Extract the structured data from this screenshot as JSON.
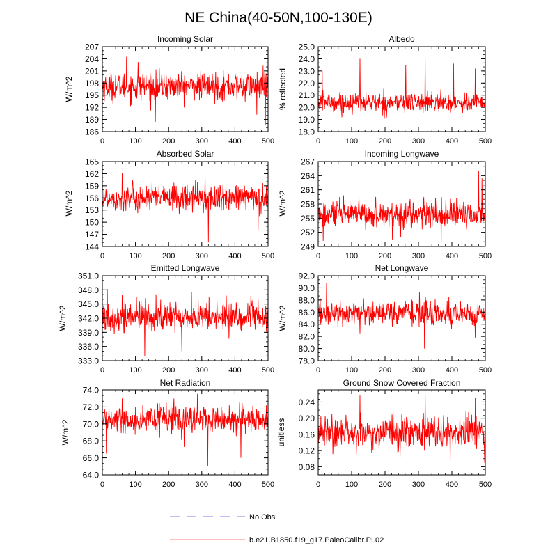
{
  "figure_title": "NE China(40-50N,100-130E)",
  "series_name": "b.e21.B1850.f19_g17.PaleoCalibr.PI.02",
  "series_color": "#ff0000",
  "legend": [
    {
      "label": "No Obs",
      "color": "#9999ee",
      "style": "dashed"
    },
    {
      "label": "b.e21.B1850.f19_g17.PaleoCalibr.PI.02",
      "color": "#ff0000",
      "style": "solid"
    }
  ],
  "chart_data": [
    {
      "type": "line",
      "title": "Incoming Solar",
      "ylabel": "W/m^2",
      "xlim": [
        0,
        500
      ],
      "ylim": [
        186,
        207
      ],
      "yticks": [
        "186",
        "189",
        "192",
        "195",
        "198",
        "201",
        "204",
        "207"
      ],
      "xticks": [
        "0",
        "100",
        "200",
        "300",
        "400",
        "500"
      ],
      "n": 500,
      "mean": 197.2,
      "amp": 1.9,
      "spikes": [
        [
          73,
          204.5
        ],
        [
          160,
          188.4
        ],
        [
          492,
          187.6
        ],
        [
          108,
          203.2
        ],
        [
          466,
          190.2
        ]
      ]
    },
    {
      "type": "line",
      "title": "Albedo",
      "ylabel": "% reflected",
      "xlim": [
        0,
        500
      ],
      "ylim": [
        18.0,
        25.0
      ],
      "yticks": [
        "18.0",
        "19.0",
        "20.0",
        "21.0",
        "22.0",
        "23.0",
        "24.0",
        "25.0"
      ],
      "xticks": [
        "0",
        "100",
        "200",
        "300",
        "400",
        "500"
      ],
      "n": 500,
      "mean": 20.4,
      "amp": 0.45,
      "spikes": [
        [
          125,
          24.0
        ],
        [
          320,
          24.0
        ],
        [
          262,
          23.5
        ],
        [
          12,
          23.0
        ],
        [
          405,
          23.6
        ],
        [
          470,
          23.2
        ]
      ]
    },
    {
      "type": "line",
      "title": "Absorbed Solar",
      "ylabel": "W/m^2",
      "xlim": [
        0,
        500
      ],
      "ylim": [
        144,
        165
      ],
      "yticks": [
        "144",
        "147",
        "150",
        "153",
        "156",
        "159",
        "162",
        "165"
      ],
      "xticks": [
        "0",
        "100",
        "200",
        "300",
        "400",
        "500"
      ],
      "n": 500,
      "mean": 156.0,
      "amp": 1.9,
      "spikes": [
        [
          320,
          145.0
        ],
        [
          60,
          162.2
        ],
        [
          310,
          161.5
        ],
        [
          470,
          148.0
        ]
      ]
    },
    {
      "type": "line",
      "title": "Incoming Longwave",
      "ylabel": "W/m^2",
      "xlim": [
        0,
        500
      ],
      "ylim": [
        249,
        267
      ],
      "yticks": [
        "249",
        "252",
        "255",
        "258",
        "261",
        "264",
        "267"
      ],
      "xticks": [
        "0",
        "100",
        "200",
        "300",
        "400",
        "500"
      ],
      "n": 500,
      "mean": 255.8,
      "amp": 1.6,
      "spikes": [
        [
          480,
          265.0
        ],
        [
          490,
          263.5
        ],
        [
          15,
          250.2
        ],
        [
          222,
          250.5
        ],
        [
          368,
          250.0
        ]
      ]
    },
    {
      "type": "line",
      "title": "Emitted Longwave",
      "ylabel": "W/m^2",
      "xlim": [
        0,
        500
      ],
      "ylim": [
        333.0,
        351.0
      ],
      "yticks": [
        "333.0",
        "336.0",
        "339.0",
        "342.0",
        "345.0",
        "348.0",
        "351.0"
      ],
      "xticks": [
        "0",
        "100",
        "200",
        "300",
        "400",
        "500"
      ],
      "n": 500,
      "mean": 342.3,
      "amp": 1.8,
      "spikes": [
        [
          15,
          348.2
        ],
        [
          128,
          334.0
        ],
        [
          60,
          347.0
        ],
        [
          240,
          335.0
        ]
      ]
    },
    {
      "type": "line",
      "title": "Net Longwave",
      "ylabel": "W/m^2",
      "xlim": [
        0,
        500
      ],
      "ylim": [
        78.0,
        92.0
      ],
      "yticks": [
        "78.0",
        "80.0",
        "82.0",
        "84.0",
        "86.0",
        "88.0",
        "90.0",
        "92.0"
      ],
      "xticks": [
        "0",
        "100",
        "200",
        "300",
        "400",
        "500"
      ],
      "n": 500,
      "mean": 85.8,
      "amp": 1.1,
      "spikes": [
        [
          25,
          90.8
        ],
        [
          318,
          80.0
        ],
        [
          125,
          82.5
        ],
        [
          470,
          81.8
        ]
      ]
    },
    {
      "type": "line",
      "title": "Net Radiation",
      "ylabel": "W/m^2",
      "xlim": [
        0,
        500
      ],
      "ylim": [
        64.0,
        74.0
      ],
      "yticks": [
        "64.0",
        "66.0",
        "68.0",
        "70.0",
        "72.0",
        "74.0"
      ],
      "xticks": [
        "0",
        "100",
        "200",
        "300",
        "400",
        "500"
      ],
      "n": 500,
      "mean": 70.5,
      "amp": 0.85,
      "spikes": [
        [
          318,
          65.0
        ],
        [
          418,
          66.0
        ],
        [
          60,
          73.0
        ],
        [
          12,
          66.5
        ]
      ]
    },
    {
      "type": "line",
      "title": "Ground Snow Covered Fraction",
      "ylabel": "unitless",
      "xlim": [
        0,
        500
      ],
      "ylim": [
        0.06,
        0.27
      ],
      "yticks": [
        "0.08",
        "0.12",
        "0.16",
        "0.20",
        "0.24"
      ],
      "xticks": [
        "0",
        "100",
        "200",
        "300",
        "400",
        "500"
      ],
      "n": 500,
      "mean": 0.165,
      "amp": 0.022,
      "spikes": [
        [
          125,
          0.258
        ],
        [
          320,
          0.26
        ],
        [
          395,
          0.095
        ],
        [
          470,
          0.25
        ],
        [
          498,
          0.09
        ]
      ]
    }
  ]
}
